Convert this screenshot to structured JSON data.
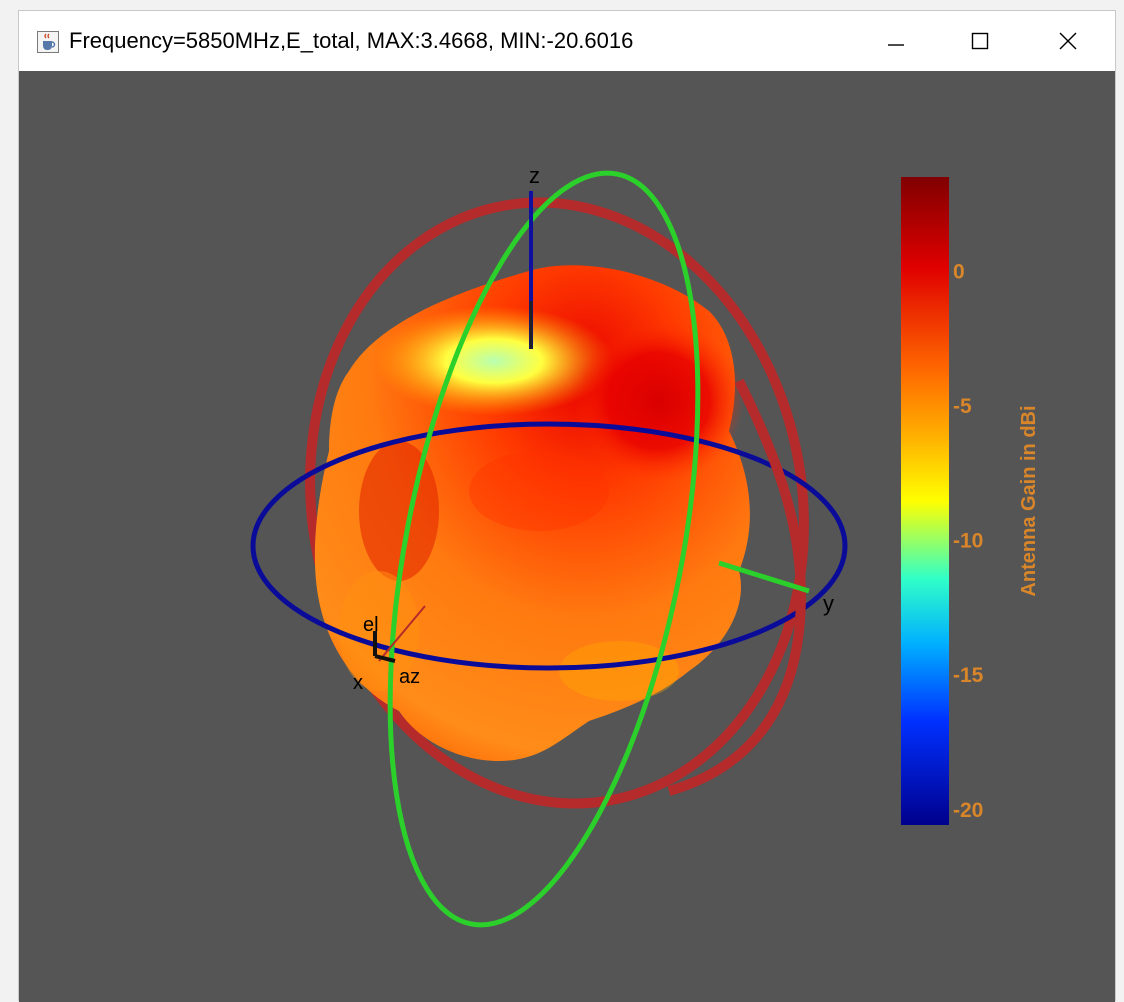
{
  "window": {
    "title": "Frequency=5850MHz,E_total, MAX:3.4668, MIN:-20.6016",
    "app_icon": "java-coffee-cup-icon",
    "controls": {
      "minimize_icon": "minimize-icon",
      "maximize_icon": "maximize-icon",
      "close_icon": "close-icon"
    }
  },
  "plot": {
    "background": "#555555",
    "axes_labels": {
      "z": "z",
      "y": "y",
      "x": "x",
      "el": "el",
      "az": "az"
    },
    "rings": {
      "azimuth_color": "#0b0b9a",
      "elevation_color": "#2bd02b",
      "third_color": "#b52a2a"
    }
  },
  "colorbar": {
    "label": "Antenna Gain in dBi",
    "label_color": "#d9862a",
    "ticks": [
      "0",
      "-5",
      "-10",
      "-15",
      "-20"
    ],
    "tick_values": [
      0,
      -5,
      -10,
      -15,
      -20
    ],
    "max": 3.4668,
    "min": -20.6016
  }
}
